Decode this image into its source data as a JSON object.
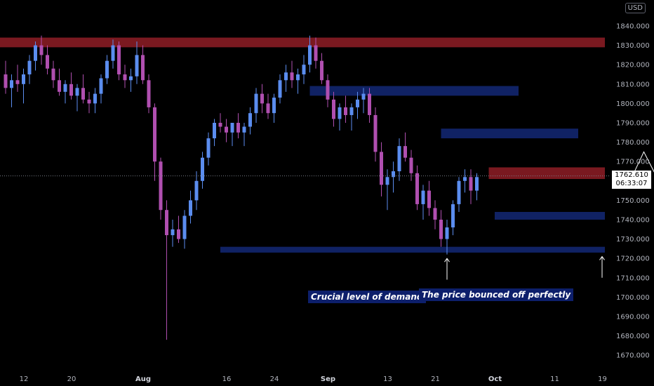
{
  "chart_data": {
    "type": "candlestick",
    "currency_badge": "USD",
    "y_ticks": [
      "1670.000",
      "1680.000",
      "1690.000",
      "1700.000",
      "1710.000",
      "1720.000",
      "1730.000",
      "1740.000",
      "1750.000",
      "1760.000",
      "1770.000",
      "1780.000",
      "1790.000",
      "1800.000",
      "1810.000",
      "1820.000",
      "1830.000",
      "1840.000"
    ],
    "y_values": [
      1670,
      1680,
      1690,
      1700,
      1710,
      1720,
      1730,
      1740,
      1750,
      1760,
      1770,
      1780,
      1790,
      1800,
      1810,
      1820,
      1830,
      1840
    ],
    "ylim": [
      1663,
      1851
    ],
    "x_ticks": [
      {
        "label": "12",
        "index": 0
      },
      {
        "label": "20",
        "index": 8
      },
      {
        "label": "Aug",
        "index": 20
      },
      {
        "label": "16",
        "index": 34
      },
      {
        "label": "24",
        "index": 42
      },
      {
        "label": "Sep",
        "index": 51
      },
      {
        "label": "13",
        "index": 61
      },
      {
        "label": "21",
        "index": 69
      },
      {
        "label": "Oct",
        "index": 79
      },
      {
        "label": "11",
        "index": 89
      },
      {
        "label": "19",
        "index": 97
      }
    ],
    "last_price": "1762.610",
    "countdown": "06:33:07",
    "last_price_value": 1762.61,
    "candles": [
      [
        1815,
        1822,
        1805,
        1808
      ],
      [
        1808,
        1815,
        1798,
        1812
      ],
      [
        1812,
        1820,
        1806,
        1810
      ],
      [
        1810,
        1818,
        1800,
        1815
      ],
      [
        1815,
        1825,
        1810,
        1822
      ],
      [
        1822,
        1832,
        1817,
        1830
      ],
      [
        1830,
        1835,
        1820,
        1825
      ],
      [
        1825,
        1830,
        1815,
        1818
      ],
      [
        1818,
        1822,
        1808,
        1812
      ],
      [
        1812,
        1818,
        1804,
        1806
      ],
      [
        1806,
        1812,
        1800,
        1810
      ],
      [
        1810,
        1816,
        1802,
        1804
      ],
      [
        1804,
        1810,
        1796,
        1808
      ],
      [
        1808,
        1815,
        1800,
        1802
      ],
      [
        1802,
        1806,
        1795,
        1800
      ],
      [
        1800,
        1808,
        1795,
        1805
      ],
      [
        1805,
        1815,
        1800,
        1813
      ],
      [
        1813,
        1825,
        1810,
        1822
      ],
      [
        1822,
        1833,
        1818,
        1830
      ],
      [
        1830,
        1832,
        1812,
        1815
      ],
      [
        1815,
        1820,
        1808,
        1812
      ],
      [
        1812,
        1818,
        1806,
        1814
      ],
      [
        1814,
        1832,
        1810,
        1825
      ],
      [
        1825,
        1830,
        1810,
        1812
      ],
      [
        1812,
        1815,
        1795,
        1798
      ],
      [
        1798,
        1800,
        1760,
        1770
      ],
      [
        1770,
        1772,
        1740,
        1745
      ],
      [
        1745,
        1750,
        1678,
        1732
      ],
      [
        1732,
        1740,
        1726,
        1735
      ],
      [
        1735,
        1742,
        1728,
        1730
      ],
      [
        1730,
        1745,
        1725,
        1742
      ],
      [
        1742,
        1755,
        1738,
        1750
      ],
      [
        1750,
        1765,
        1745,
        1760
      ],
      [
        1760,
        1775,
        1756,
        1772
      ],
      [
        1772,
        1785,
        1768,
        1782
      ],
      [
        1782,
        1792,
        1778,
        1790
      ],
      [
        1790,
        1795,
        1785,
        1788
      ],
      [
        1788,
        1792,
        1780,
        1785
      ],
      [
        1785,
        1790,
        1778,
        1790
      ],
      [
        1790,
        1795,
        1782,
        1785
      ],
      [
        1785,
        1790,
        1778,
        1788
      ],
      [
        1788,
        1798,
        1784,
        1795
      ],
      [
        1795,
        1808,
        1790,
        1805
      ],
      [
        1805,
        1810,
        1795,
        1800
      ],
      [
        1800,
        1805,
        1792,
        1795
      ],
      [
        1795,
        1805,
        1790,
        1803
      ],
      [
        1803,
        1815,
        1800,
        1812
      ],
      [
        1812,
        1820,
        1806,
        1816
      ],
      [
        1816,
        1822,
        1808,
        1812
      ],
      [
        1812,
        1818,
        1805,
        1815
      ],
      [
        1815,
        1825,
        1810,
        1820
      ],
      [
        1820,
        1835,
        1816,
        1830
      ],
      [
        1830,
        1834,
        1818,
        1822
      ],
      [
        1822,
        1826,
        1810,
        1812
      ],
      [
        1812,
        1815,
        1798,
        1802
      ],
      [
        1802,
        1806,
        1788,
        1792
      ],
      [
        1792,
        1800,
        1786,
        1798
      ],
      [
        1798,
        1804,
        1790,
        1794
      ],
      [
        1794,
        1800,
        1786,
        1798
      ],
      [
        1798,
        1806,
        1792,
        1802
      ],
      [
        1802,
        1808,
        1795,
        1805
      ],
      [
        1805,
        1808,
        1790,
        1794
      ],
      [
        1794,
        1798,
        1770,
        1775
      ],
      [
        1775,
        1780,
        1752,
        1758
      ],
      [
        1758,
        1766,
        1745,
        1762
      ],
      [
        1762,
        1770,
        1754,
        1765
      ],
      [
        1765,
        1782,
        1760,
        1778
      ],
      [
        1778,
        1785,
        1770,
        1772
      ],
      [
        1772,
        1776,
        1760,
        1764
      ],
      [
        1764,
        1768,
        1745,
        1748
      ],
      [
        1748,
        1758,
        1740,
        1755
      ],
      [
        1755,
        1760,
        1742,
        1746
      ],
      [
        1746,
        1750,
        1735,
        1740
      ],
      [
        1740,
        1745,
        1726,
        1730
      ],
      [
        1730,
        1740,
        1722,
        1736
      ],
      [
        1736,
        1750,
        1732,
        1748
      ],
      [
        1748,
        1762,
        1744,
        1760
      ],
      [
        1760,
        1766,
        1754,
        1762
      ],
      [
        1762,
        1766,
        1748,
        1755
      ],
      [
        1755,
        1764,
        1750,
        1762
      ]
    ],
    "zones": [
      {
        "type": "supply",
        "y_top": 1834,
        "y_bottom": 1829,
        "x_start": -2,
        "x_end": 123
      },
      {
        "type": "demand",
        "y_top": 1809,
        "y_bottom": 1804,
        "x_start": 51,
        "x_end": 86
      },
      {
        "type": "demand",
        "y_top": 1787,
        "y_bottom": 1782,
        "x_start": 73,
        "x_end": 96
      },
      {
        "type": "supply",
        "y_top": 1767,
        "y_bottom": 1761,
        "x_start": 81,
        "x_end": 109
      },
      {
        "type": "demand",
        "y_top": 1744,
        "y_bottom": 1740,
        "x_start": 82,
        "x_end": 108
      },
      {
        "type": "demand",
        "y_top": 1726,
        "y_bottom": 1723,
        "x_start": 36,
        "x_end": 114
      }
    ],
    "projection": [
      [
        105,
        1762
      ],
      [
        107,
        1775
      ],
      [
        109,
        1763
      ],
      [
        117,
        1832
      ]
    ],
    "annotations": [
      {
        "text": "Crucial level of demand",
        "arrow_x": 74,
        "arrow_from": 1709,
        "arrow_to": 1720
      },
      {
        "text": "The price bounced off perfectly",
        "arrow_x": 100,
        "arrow_from": 1710,
        "arrow_to": 1721
      }
    ],
    "colors": {
      "up": "#5b8def",
      "down": "#b04fb0",
      "supply": "#8b1c24",
      "demand": "#142a7a",
      "projection": "#ffffff"
    }
  }
}
